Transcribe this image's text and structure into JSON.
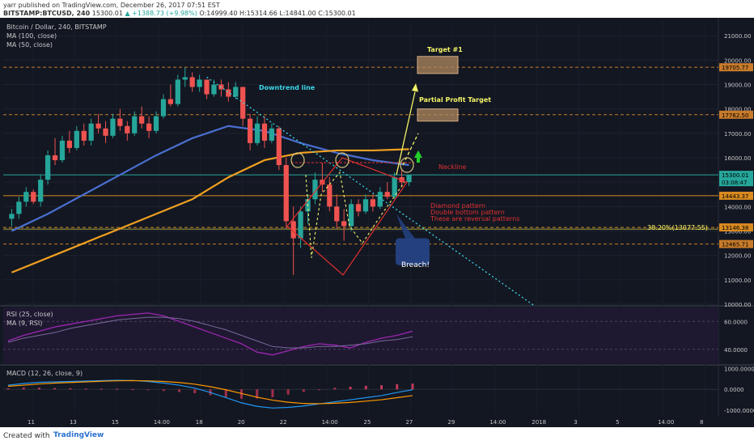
{
  "header": {
    "author_line": "yarr published on TradingView.com, December 26, 2017 07:51 EST",
    "ticker": "BITSTAMP:BTCUSD, 240",
    "price": "15300.01",
    "change": "▲ +1388.73 (+9.98%)",
    "ohlc": "O:14999.40 H:15314.66 L:14841.00 C:15300.01"
  },
  "footer": {
    "created_with": "Created with",
    "brand": "TradingView"
  },
  "colors": {
    "background": "#131722",
    "up": "#26a69a",
    "down": "#ef5350",
    "ma100": "#4a6fd0",
    "ma50": "#f0a020",
    "rsi": "#9c27b0",
    "macd": "#2196f3",
    "signal": "#ff9800"
  },
  "chart_data": [
    {
      "type": "candlestick",
      "title": "Bitcoin / Dollar, 240, BITSTAMP",
      "legend": [
        "MA (100, close)",
        "MA (50, close)"
      ],
      "x_tick_labels": [
        "11",
        "13",
        "15",
        "14:00",
        "18",
        "20",
        "22",
        "14:00",
        "25",
        "27",
        "29",
        "14:00",
        "2018",
        "3",
        "5",
        "14:00",
        "8"
      ],
      "y_tick_labels": [
        "21000.00",
        "20000.00",
        "19000.00",
        "18000.00",
        "17000.00",
        "16000.00",
        "15000.00",
        "14000.00",
        "13000.00",
        "12000.00",
        "11000.00",
        "10000.00"
      ],
      "ylim": [
        10000,
        21600
      ],
      "price_labels": [
        "19705.77",
        "17762.50",
        "15300.01",
        "03:08:47",
        "14443.37",
        "13146.38",
        "12465.71"
      ],
      "candles": [
        [
          13500,
          13900,
          13200,
          13700
        ],
        [
          13700,
          14400,
          13500,
          14200
        ],
        [
          14200,
          14800,
          14000,
          14600
        ],
        [
          14600,
          14700,
          14100,
          14200
        ],
        [
          14200,
          15300,
          14000,
          15100
        ],
        [
          15100,
          16300,
          14900,
          16100
        ],
        [
          16100,
          16800,
          15700,
          15900
        ],
        [
          15900,
          16900,
          15800,
          16700
        ],
        [
          16700,
          17100,
          16200,
          16400
        ],
        [
          16400,
          17300,
          16300,
          17100
        ],
        [
          17100,
          17400,
          16500,
          16700
        ],
        [
          16700,
          17600,
          16500,
          17400
        ],
        [
          17400,
          17800,
          17000,
          17200
        ],
        [
          17200,
          17500,
          16600,
          16900
        ],
        [
          16900,
          17800,
          16800,
          17600
        ],
        [
          17600,
          18000,
          17100,
          17300
        ],
        [
          17300,
          17500,
          16700,
          17000
        ],
        [
          17000,
          17900,
          16900,
          17700
        ],
        [
          17700,
          18100,
          17200,
          17400
        ],
        [
          17400,
          17700,
          16800,
          17100
        ],
        [
          17100,
          17900,
          17000,
          17700
        ],
        [
          17700,
          18600,
          17600,
          18400
        ],
        [
          18400,
          19000,
          18100,
          18200
        ],
        [
          18200,
          19400,
          18100,
          19200
        ],
        [
          19200,
          19700,
          18900,
          19300
        ],
        [
          19300,
          19500,
          18700,
          18900
        ],
        [
          18900,
          19400,
          18700,
          19200
        ],
        [
          19200,
          19100,
          18400,
          18600
        ],
        [
          18600,
          19200,
          18500,
          19000
        ],
        [
          19000,
          19200,
          18500,
          18800
        ],
        [
          18800,
          19100,
          18300,
          18500
        ],
        [
          18500,
          19100,
          18400,
          18900
        ],
        [
          18900,
          18800,
          17300,
          17600
        ],
        [
          17600,
          17800,
          16300,
          16600
        ],
        [
          16600,
          17700,
          16500,
          17400
        ],
        [
          17400,
          17700,
          16400,
          16700
        ],
        [
          16700,
          17400,
          16600,
          17200
        ],
        [
          17200,
          17300,
          15500,
          15700
        ],
        [
          15700,
          16000,
          13100,
          13400
        ],
        [
          13400,
          14000,
          11200,
          12700
        ],
        [
          12700,
          14000,
          12300,
          13800
        ],
        [
          13800,
          14500,
          13300,
          14300
        ],
        [
          14300,
          15400,
          14100,
          15100
        ],
        [
          15100,
          15800,
          14600,
          14900
        ],
        [
          14900,
          15200,
          13800,
          14000
        ],
        [
          14000,
          14500,
          13100,
          13400
        ],
        [
          13400,
          13900,
          12600,
          13200
        ],
        [
          13200,
          14300,
          13000,
          14100
        ],
        [
          14100,
          14300,
          13600,
          13800
        ],
        [
          13800,
          14500,
          13700,
          14300
        ],
        [
          14300,
          14500,
          13800,
          14000
        ],
        [
          14000,
          14800,
          13900,
          14600
        ],
        [
          14600,
          15000,
          14300,
          14400
        ],
        [
          14400,
          15400,
          14300,
          15200
        ],
        [
          15200,
          15500,
          14800,
          14999
        ],
        [
          14999,
          15315,
          14841,
          15300
        ]
      ],
      "moving_averages": [
        {
          "name": "MA (100, close)",
          "x": [
            0,
            5,
            10,
            15,
            20,
            25,
            30,
            35,
            40,
            45,
            50,
            55
          ],
          "y": [
            13000,
            13700,
            14500,
            15300,
            16100,
            16800,
            17300,
            17100,
            16600,
            16200,
            15900,
            15700
          ]
        },
        {
          "name": "MA (50, close)",
          "x": [
            0,
            5,
            10,
            15,
            20,
            25,
            30,
            35,
            40,
            45,
            50,
            55
          ],
          "y": [
            11300,
            11900,
            12500,
            13100,
            13700,
            14300,
            15200,
            15900,
            16200,
            16300,
            16300,
            16350
          ]
        }
      ]
    },
    {
      "type": "line",
      "title": "RSI (25, close)",
      "legend": [
        "MA (9, RSI)"
      ],
      "y_tick_labels": [
        "60.0000",
        "40.0000"
      ],
      "ylim": [
        30,
        70
      ],
      "series": [
        {
          "name": "RSI (25, close)",
          "values": [
            46,
            50,
            53,
            56,
            58,
            60,
            62,
            64,
            65,
            66,
            64,
            60,
            56,
            52,
            48,
            44,
            38,
            36,
            39,
            42,
            44,
            43,
            41,
            45,
            48,
            50,
            53
          ]
        },
        {
          "name": "MA (9, RSI)",
          "values": [
            45,
            48,
            50,
            52,
            55,
            57,
            59,
            61,
            62,
            63,
            63,
            62,
            60,
            57,
            54,
            50,
            46,
            42,
            41,
            41,
            42,
            42,
            43,
            44,
            46,
            47,
            49
          ]
        }
      ]
    },
    {
      "type": "line",
      "title": "MACD (12, 26, close, 9)",
      "y_tick_labels": [
        "1000.0000",
        "0.0000",
        "-1000.0000"
      ],
      "ylim": [
        -1200,
        1100
      ],
      "series": [
        {
          "name": "MACD",
          "values": [
            200,
            280,
            340,
            360,
            380,
            400,
            420,
            440,
            430,
            380,
            300,
            200,
            60,
            -150,
            -400,
            -650,
            -820,
            -900,
            -870,
            -800,
            -700,
            -600,
            -500,
            -400,
            -300,
            -150,
            -20
          ]
        },
        {
          "name": "Signal",
          "values": [
            150,
            200,
            260,
            300,
            330,
            360,
            390,
            410,
            420,
            410,
            380,
            330,
            250,
            130,
            -20,
            -200,
            -380,
            -520,
            -620,
            -680,
            -690,
            -670,
            -630,
            -570,
            -500,
            -400,
            -300
          ]
        }
      ],
      "histogram": [
        50,
        80,
        80,
        60,
        50,
        40,
        30,
        30,
        10,
        -30,
        -80,
        -130,
        -190,
        -280,
        -380,
        -450,
        -440,
        -380,
        -250,
        -120,
        -10,
        70,
        130,
        170,
        200,
        250,
        280
      ]
    }
  ],
  "annotations": {
    "downtrend": "Downtrend line",
    "target1": "Target #1",
    "partial": "Partial Profit Target",
    "neckline": "Neckline",
    "pattern_lines": [
      "Diamond pattern",
      "Double bottom pattern",
      "These are reversal patterns"
    ],
    "fib": "38.20%(13077.55)",
    "breach": "Breach!"
  }
}
